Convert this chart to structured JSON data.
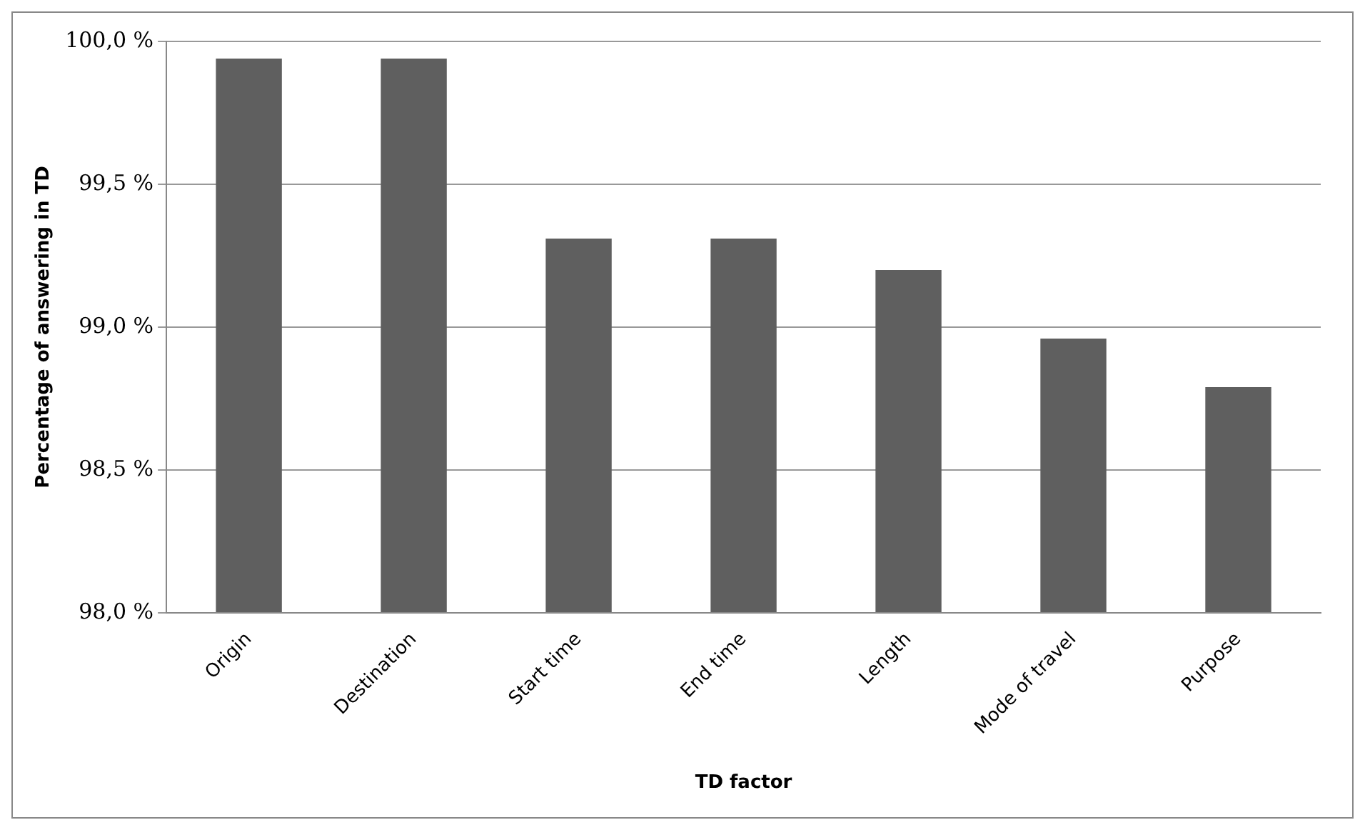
{
  "chart_data": {
    "type": "bar",
    "xlabel": "TD factor",
    "ylabel": "Percentage of answering in TD",
    "categories": [
      "Origin",
      "Destination",
      "Start time",
      "End time",
      "Length",
      "Mode of travel",
      "Purpose"
    ],
    "values": [
      99.94,
      99.94,
      99.31,
      99.31,
      99.2,
      98.96,
      98.79
    ],
    "color": "#5f5f5f",
    "ylim": [
      98,
      100
    ],
    "yticks": [
      {
        "value": 98,
        "label": "98,0 %"
      },
      {
        "value": 98.5,
        "label": "98,5 %"
      },
      {
        "value": 99,
        "label": "99,0 %"
      },
      {
        "value": 99.5,
        "label": "99,5 %"
      },
      {
        "value": 100,
        "label": "100,0 %"
      }
    ],
    "grid": "y",
    "legend": false
  }
}
